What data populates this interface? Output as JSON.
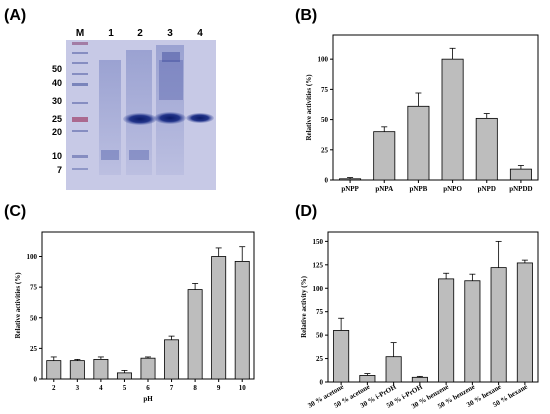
{
  "panel_labels": [
    "(A)",
    "(B)",
    "(C)",
    "(D)"
  ],
  "gel": {
    "lane_labels": [
      "M",
      "1",
      "2",
      "3",
      "4"
    ],
    "marker_labels": [
      "50",
      "40",
      "30",
      "25",
      "20",
      "10",
      "7"
    ],
    "marker_values": [
      50,
      40,
      30,
      25,
      20,
      10,
      7
    ]
  },
  "chart_data": [
    {
      "panel": "(B)",
      "type": "bar",
      "categories": [
        "pNPP",
        "pNPA",
        "pNPB",
        "pNPO",
        "pNPD",
        "pNPDD"
      ],
      "values": [
        1,
        40,
        61,
        100,
        51,
        9
      ],
      "errors": [
        1,
        4,
        11,
        9,
        4,
        3
      ],
      "xlabel": "",
      "ylabel": "Relative activities (%)",
      "ylim": [
        0,
        120
      ],
      "yticks": [
        0,
        25,
        50,
        75,
        100
      ]
    },
    {
      "panel": "(C)",
      "type": "bar",
      "categories": [
        "2",
        "3",
        "4",
        "5",
        "6",
        "7",
        "8",
        "9",
        "10"
      ],
      "values": [
        15,
        15,
        16,
        5,
        17,
        32,
        73,
        100,
        96
      ],
      "errors": [
        3,
        1,
        2,
        2,
        1,
        3,
        5,
        7,
        12
      ],
      "xlabel": "pH",
      "ylabel": "Relative activities (%)",
      "ylim": [
        0,
        120
      ],
      "yticks": [
        0,
        25,
        50,
        75,
        100
      ]
    },
    {
      "panel": "(D)",
      "type": "bar",
      "categories": [
        "30 % acetone",
        "50 % acetone",
        "30 % i-PrOH",
        "50 % i-PrOH",
        "30 % benzene",
        "50 % benzene",
        "30 % hexane",
        "50 % hexane"
      ],
      "values": [
        55,
        7,
        27,
        5,
        110,
        108,
        122,
        127
      ],
      "errors": [
        13,
        2,
        15,
        1,
        6,
        7,
        28,
        3
      ],
      "xlabel": "",
      "ylabel": "Relative activity (%)",
      "ylim": [
        0,
        160
      ],
      "yticks": [
        0,
        25,
        50,
        75,
        100,
        125,
        150
      ]
    }
  ]
}
